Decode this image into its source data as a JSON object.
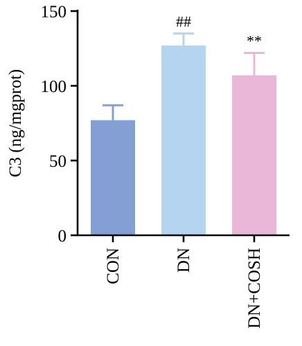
{
  "chart_data": {
    "type": "bar",
    "title": "",
    "xlabel": "",
    "ylabel": "C3 (ng/mgprot)",
    "ylim": [
      0,
      150
    ],
    "yticks": [
      0,
      50,
      100,
      150
    ],
    "categories": [
      "CON",
      "DN",
      "DN+COSH"
    ],
    "values": [
      77,
      127,
      107
    ],
    "errors": [
      10,
      8,
      15
    ],
    "significance": [
      "",
      "##",
      "**"
    ],
    "colors": [
      "#849fd3",
      "#b4d4f0",
      "#ebb7d8"
    ],
    "grid": false
  }
}
